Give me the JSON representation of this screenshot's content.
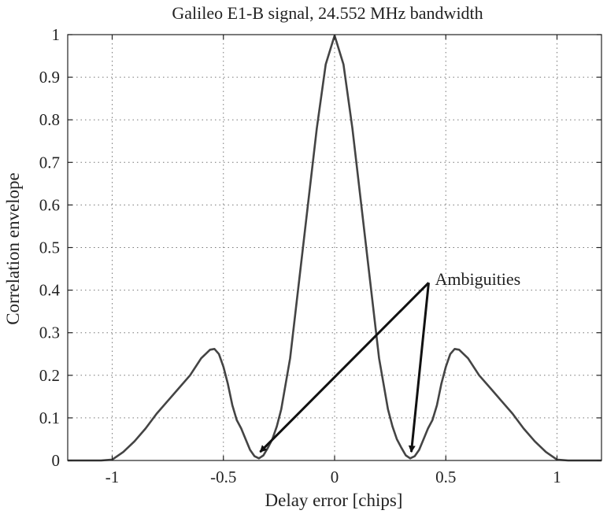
{
  "chart_data": {
    "type": "line",
    "title": "Galileo E1-B signal, 24.552 MHz bandwidth",
    "xlabel": "Delay error [chips]",
    "ylabel": "Correlation envelope",
    "xlim": [
      -1.2,
      1.2
    ],
    "ylim": [
      0,
      1
    ],
    "xticks": [
      -1,
      -0.5,
      0,
      0.5,
      1
    ],
    "xtick_labels": [
      "-1",
      "-0.5",
      "0",
      "0.5",
      "1"
    ],
    "yticks": [
      0,
      0.1,
      0.2,
      0.3,
      0.4,
      0.5,
      0.6,
      0.7,
      0.8,
      0.9,
      1
    ],
    "ytick_labels": [
      "0",
      "0.1",
      "0.2",
      "0.3",
      "0.4",
      "0.5",
      "0.6",
      "0.7",
      "0.8",
      "0.9",
      "1"
    ],
    "grid": true,
    "colors": {
      "line": "#444444",
      "grid": "#777777",
      "axes": "#222222"
    },
    "series": [
      {
        "x": [
          -1.2,
          -1.05,
          -1.0,
          -0.95,
          -0.9,
          -0.85,
          -0.8,
          -0.75,
          -0.7,
          -0.65,
          -0.6,
          -0.56,
          -0.54,
          -0.52,
          -0.5,
          -0.48,
          -0.46,
          -0.44,
          -0.42,
          -0.4,
          -0.38,
          -0.36,
          -0.34,
          -0.32,
          -0.3,
          -0.28,
          -0.26,
          -0.24,
          -0.2,
          -0.16,
          -0.12,
          -0.08,
          -0.04,
          0.0,
          0.04,
          0.08,
          0.12,
          0.16,
          0.2,
          0.24,
          0.26,
          0.28,
          0.3,
          0.32,
          0.34,
          0.36,
          0.38,
          0.4,
          0.42,
          0.44,
          0.46,
          0.48,
          0.5,
          0.52,
          0.54,
          0.56,
          0.6,
          0.65,
          0.7,
          0.75,
          0.8,
          0.85,
          0.9,
          0.95,
          1.0,
          1.05,
          1.2
        ],
        "y": [
          0.0,
          0.0,
          0.002,
          0.02,
          0.045,
          0.075,
          0.11,
          0.14,
          0.17,
          0.2,
          0.24,
          0.26,
          0.262,
          0.25,
          0.22,
          0.18,
          0.13,
          0.095,
          0.075,
          0.05,
          0.025,
          0.01,
          0.005,
          0.012,
          0.03,
          0.05,
          0.08,
          0.12,
          0.24,
          0.42,
          0.6,
          0.78,
          0.93,
          0.998,
          0.93,
          0.78,
          0.6,
          0.42,
          0.24,
          0.12,
          0.08,
          0.05,
          0.03,
          0.012,
          0.005,
          0.01,
          0.025,
          0.05,
          0.075,
          0.095,
          0.13,
          0.18,
          0.22,
          0.25,
          0.262,
          0.26,
          0.24,
          0.2,
          0.17,
          0.14,
          0.11,
          0.075,
          0.045,
          0.02,
          0.002,
          0.0,
          0.0
        ]
      }
    ],
    "annotations": [
      {
        "text": "Ambiguities",
        "anchor": [
          0.43,
          0.41
        ],
        "arrows_to": [
          [
            -0.335,
            0.02
          ],
          [
            0.345,
            0.02
          ]
        ]
      }
    ]
  }
}
